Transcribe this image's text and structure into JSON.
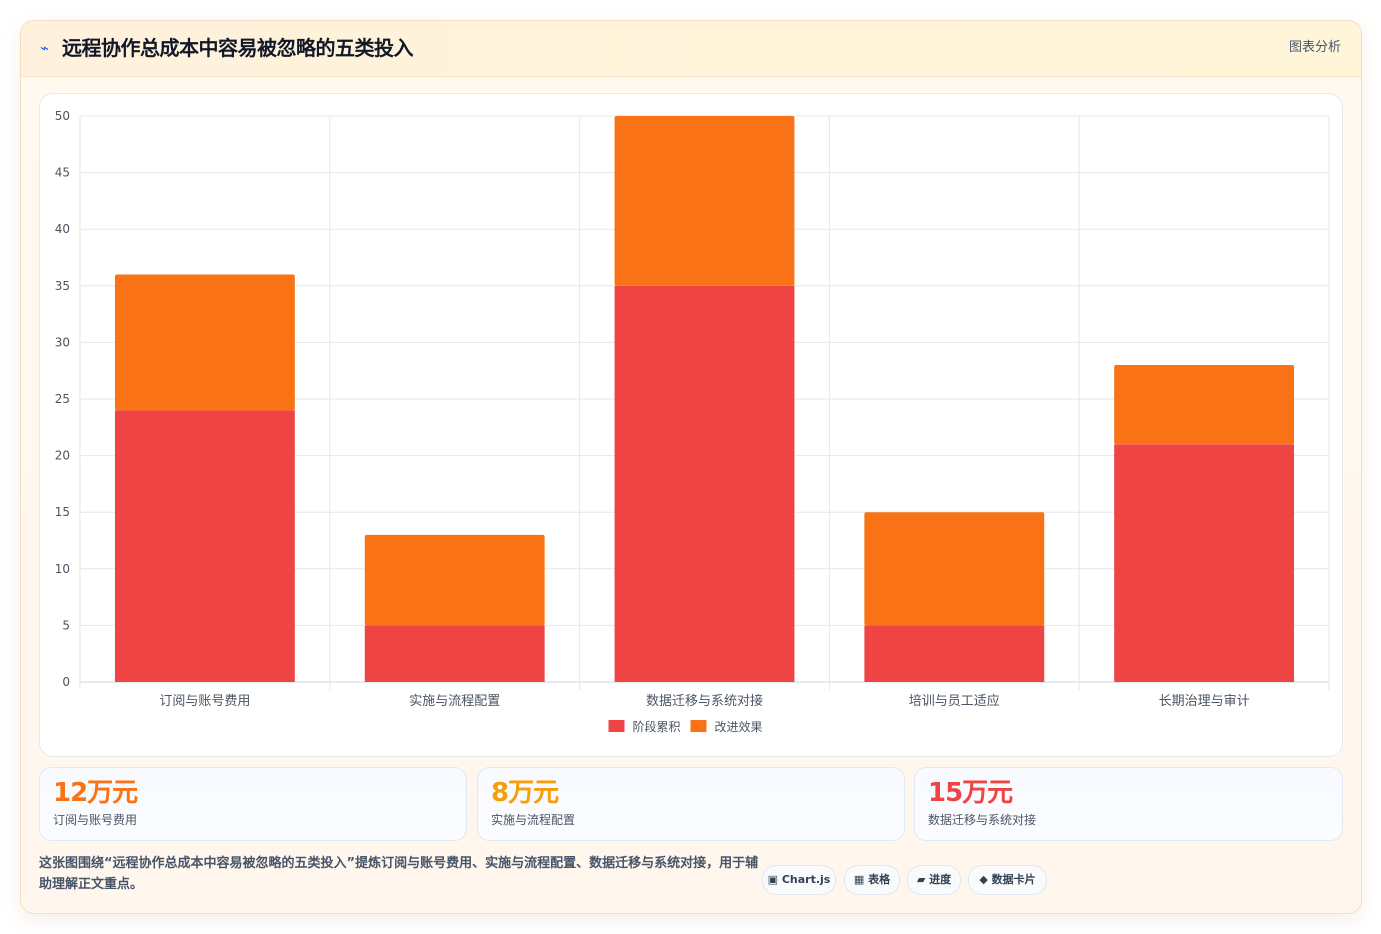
{
  "header": {
    "icon": "lightning-icon",
    "title": "远程协作总成本中容易被忽略的五类投入",
    "tag": "图表分析"
  },
  "chart_data": {
    "type": "bar",
    "stacked": true,
    "categories": [
      "订阅与账号费用",
      "实施与流程配置",
      "数据迁移与系统对接",
      "培训与员工适应",
      "长期治理与审计"
    ],
    "series": [
      {
        "name": "阶段累积",
        "color": "#ef4444",
        "values": [
          24,
          5,
          35,
          5,
          21
        ]
      },
      {
        "name": "改进效果",
        "color": "#f97316",
        "values": [
          12,
          8,
          15,
          10,
          7
        ]
      }
    ],
    "ylim": [
      0,
      50
    ],
    "yticks": [
      0,
      5,
      10,
      15,
      20,
      25,
      30,
      35,
      40,
      45,
      50
    ],
    "grid": true,
    "legend": "bottom"
  },
  "stats": [
    {
      "value": "12万元",
      "label": "订阅与账号费用",
      "color": "#f97316"
    },
    {
      "value": "8万元",
      "label": "实施与流程配置",
      "color": "#f59e0b"
    },
    {
      "value": "15万元",
      "label": "数据迁移与系统对接",
      "color": "#ef4444"
    }
  ],
  "description": "这张图围绕“远程协作总成本中容易被忽略的五类投入”提炼订阅与账号费用、实施与流程配置、数据迁移与系统对接，用于辅助理解正文重点。",
  "tags": [
    "▣ Chart.js",
    "▦ 表格",
    "▰ 进度",
    "◆ 数据卡片"
  ]
}
